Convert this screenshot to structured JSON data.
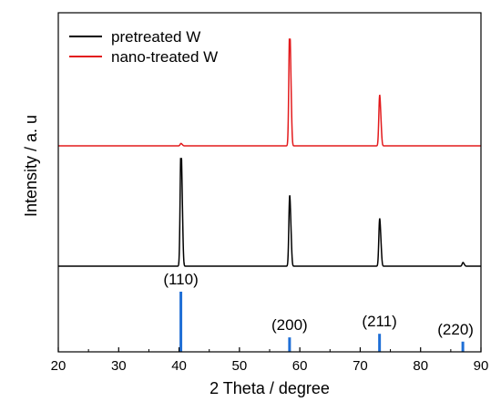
{
  "chart_data": {
    "type": "line",
    "xlabel": "2 Theta / degree",
    "ylabel": "Intensity / a. u",
    "xlim": [
      20,
      90
    ],
    "xticks": [
      20,
      30,
      40,
      50,
      60,
      70,
      80,
      90
    ],
    "grid": false,
    "legend_position": "top-left",
    "y_axis_ticks_shown": false,
    "series": [
      {
        "name": "pretreated W",
        "color": "#000000",
        "baseline": 0,
        "peaks": [
          {
            "x": 40.3,
            "y": 1.0
          },
          {
            "x": 58.3,
            "y": 0.58
          },
          {
            "x": 73.2,
            "y": 0.39
          },
          {
            "x": 87.0,
            "y": 0.03
          }
        ]
      },
      {
        "name": "nano-treated W",
        "color": "#e31a1c",
        "baseline": 1.0,
        "peaks": [
          {
            "x": 40.3,
            "y": 0.02
          },
          {
            "x": 58.3,
            "y": 1.0
          },
          {
            "x": 73.2,
            "y": 0.42
          }
        ]
      }
    ],
    "reference": {
      "color": "#1f6fd6",
      "peaks": [
        {
          "x": 40.3,
          "y": 1.0,
          "label": "(110)"
        },
        {
          "x": 58.3,
          "y": 0.24,
          "label": "(200)"
        },
        {
          "x": 73.2,
          "y": 0.3,
          "label": "(211)"
        },
        {
          "x": 87.0,
          "y": 0.17,
          "label": "(220)"
        }
      ]
    }
  }
}
